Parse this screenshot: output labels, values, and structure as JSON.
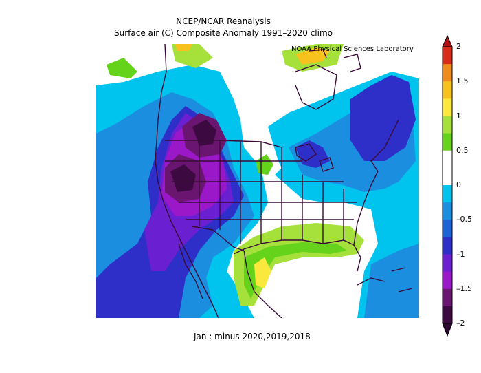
{
  "title_line1": "NCEP/NCAR Reanalysis",
  "title_line2": "Surface air (C) Composite Anomaly 1991–2020 climo",
  "lab_label": "NOAA Physical Sciences Laboratory",
  "footer": "Jan :  minus 2020,2019,2018",
  "colorbar": {
    "ticks": [
      "2",
      "1.5",
      "1",
      "0.5",
      "0",
      "–0.5",
      "–1",
      "–1.5",
      "–2"
    ],
    "colors": [
      "#d92b1a",
      "#f08c1c",
      "#f7c21e",
      "#fae93c",
      "#a6e03a",
      "#66d31b",
      "#ffffff",
      "#ffffff",
      "#00c4ed",
      "#1b8ee0",
      "#1e63d6",
      "#2e2fc9",
      "#6a1fd1",
      "#9b18c8",
      "#6a1670",
      "#3c0a40"
    ]
  },
  "map_colors": {
    "white": "#ffffff",
    "lightblue": "#00c4ed",
    "blue": "#1b8ee0",
    "darkblue": "#1e63d6",
    "indigo": "#2e2fc9",
    "violet": "#6a1fd1",
    "purple": "#9b18c8",
    "deeppurple": "#6a1670",
    "darkest": "#3c0a40",
    "lightgreen": "#a6e03a",
    "green": "#66d31b",
    "yellow": "#fae93c",
    "gold": "#f7c21e",
    "orange": "#f08c1c",
    "border": "#3a0a38"
  }
}
